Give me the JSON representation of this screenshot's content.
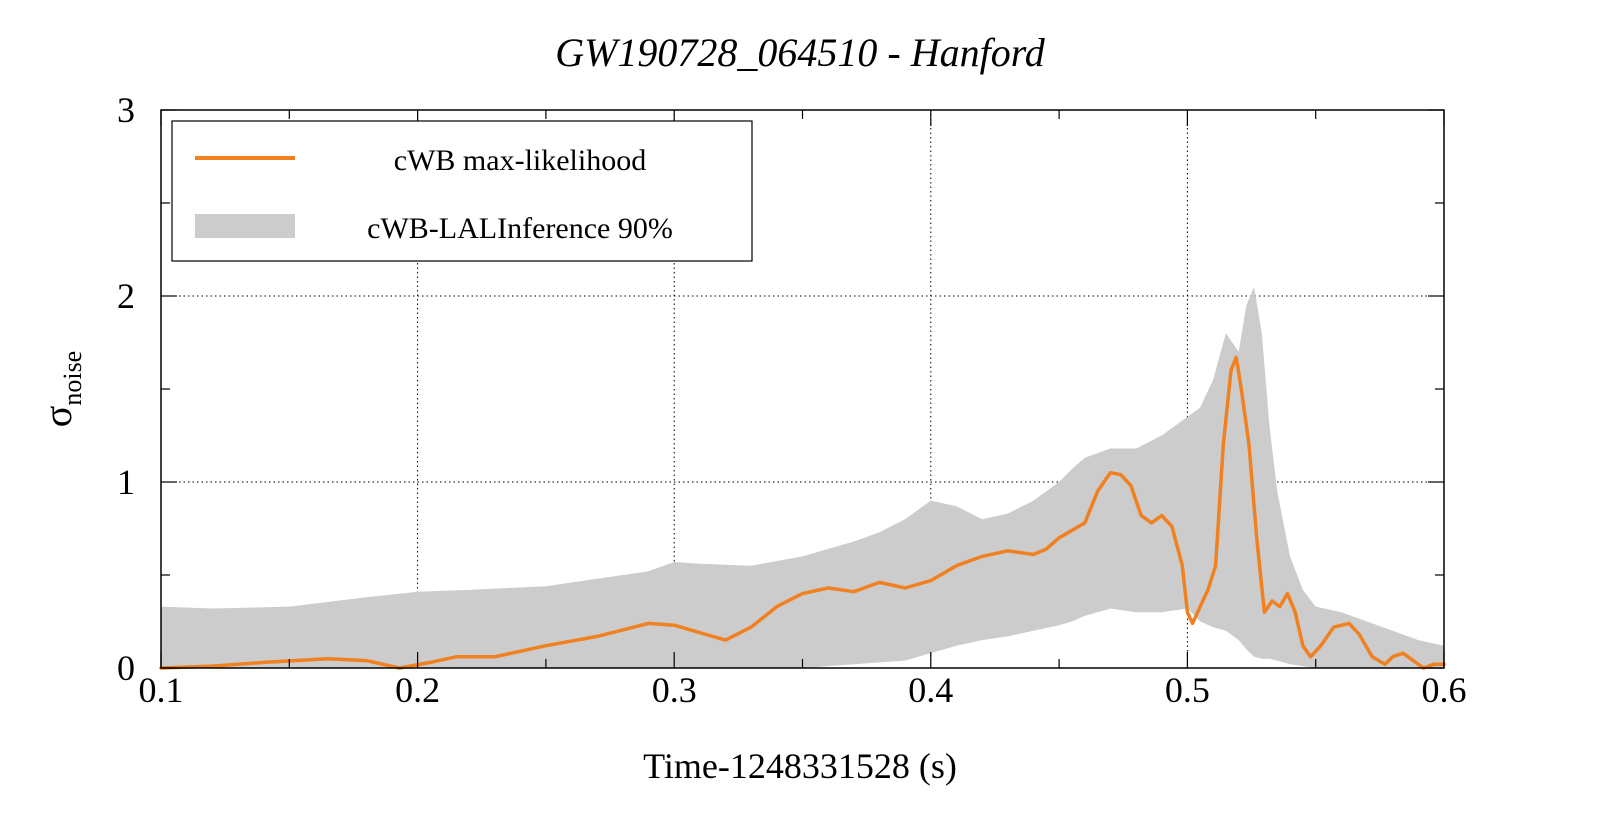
{
  "chart_data": {
    "type": "line",
    "title": "GW190728_064510 - Hanford",
    "xlabel": "Time-1248331528 (s)",
    "ylabel_main": "σ",
    "ylabel_sub": "noise",
    "xlim": [
      0.1,
      0.6
    ],
    "ylim": [
      0,
      3
    ],
    "x_ticks": [
      0.1,
      0.2,
      0.3,
      0.4,
      0.5,
      0.6
    ],
    "x_tick_labels": [
      "0.1",
      "0.2",
      "0.3",
      "0.4",
      "0.5",
      "0.6"
    ],
    "y_ticks": [
      0,
      1,
      2,
      3
    ],
    "y_tick_labels": [
      "0",
      "1",
      "2",
      "3"
    ],
    "grid": true,
    "legend_position": "top-left",
    "colors": {
      "line": "#f08020",
      "band": "#cccccc"
    },
    "series": [
      {
        "name": "cWB max-likelihood",
        "kind": "line",
        "x": [
          0.1,
          0.12,
          0.14,
          0.165,
          0.18,
          0.193,
          0.205,
          0.215,
          0.23,
          0.25,
          0.27,
          0.29,
          0.3,
          0.31,
          0.32,
          0.33,
          0.34,
          0.35,
          0.36,
          0.37,
          0.38,
          0.39,
          0.4,
          0.41,
          0.42,
          0.43,
          0.44,
          0.445,
          0.45,
          0.46,
          0.465,
          0.47,
          0.474,
          0.478,
          0.482,
          0.486,
          0.49,
          0.494,
          0.498,
          0.5,
          0.502,
          0.505,
          0.508,
          0.511,
          0.514,
          0.517,
          0.519,
          0.521,
          0.524,
          0.527,
          0.53,
          0.533,
          0.536,
          0.539,
          0.542,
          0.545,
          0.548,
          0.552,
          0.557,
          0.563,
          0.567,
          0.572,
          0.577,
          0.58,
          0.584,
          0.588,
          0.592,
          0.596,
          0.6
        ],
        "y": [
          0.0,
          0.01,
          0.03,
          0.05,
          0.04,
          0.0,
          0.03,
          0.06,
          0.06,
          0.12,
          0.17,
          0.24,
          0.23,
          0.19,
          0.15,
          0.22,
          0.33,
          0.4,
          0.43,
          0.41,
          0.46,
          0.43,
          0.47,
          0.55,
          0.6,
          0.63,
          0.61,
          0.64,
          0.7,
          0.78,
          0.95,
          1.05,
          1.04,
          0.98,
          0.82,
          0.78,
          0.82,
          0.76,
          0.55,
          0.3,
          0.24,
          0.33,
          0.42,
          0.55,
          1.2,
          1.6,
          1.67,
          1.5,
          1.2,
          0.7,
          0.3,
          0.36,
          0.33,
          0.4,
          0.3,
          0.12,
          0.06,
          0.12,
          0.22,
          0.24,
          0.18,
          0.06,
          0.02,
          0.06,
          0.08,
          0.04,
          0.0,
          0.02,
          0.02
        ]
      },
      {
        "name": "cWB-LALInference 90%",
        "kind": "band",
        "x": [
          0.1,
          0.12,
          0.15,
          0.18,
          0.2,
          0.22,
          0.25,
          0.27,
          0.29,
          0.3,
          0.31,
          0.33,
          0.35,
          0.37,
          0.38,
          0.39,
          0.4,
          0.41,
          0.42,
          0.43,
          0.44,
          0.45,
          0.455,
          0.46,
          0.47,
          0.48,
          0.49,
          0.5,
          0.505,
          0.51,
          0.515,
          0.52,
          0.523,
          0.526,
          0.529,
          0.532,
          0.535,
          0.54,
          0.545,
          0.55,
          0.56,
          0.57,
          0.58,
          0.59,
          0.6
        ],
        "low": [
          0.0,
          0.0,
          0.0,
          0.0,
          0.0,
          0.0,
          0.0,
          0.0,
          0.0,
          0.0,
          0.0,
          0.0,
          0.0,
          0.02,
          0.03,
          0.04,
          0.08,
          0.12,
          0.15,
          0.17,
          0.2,
          0.23,
          0.25,
          0.28,
          0.32,
          0.3,
          0.3,
          0.32,
          0.25,
          0.22,
          0.2,
          0.15,
          0.1,
          0.06,
          0.05,
          0.05,
          0.04,
          0.02,
          0.01,
          0.0,
          0.0,
          0.0,
          0.0,
          0.0,
          0.0
        ],
        "high": [
          0.33,
          0.32,
          0.33,
          0.38,
          0.41,
          0.42,
          0.44,
          0.48,
          0.52,
          0.57,
          0.56,
          0.55,
          0.6,
          0.68,
          0.73,
          0.8,
          0.9,
          0.87,
          0.8,
          0.83,
          0.9,
          1.0,
          1.07,
          1.13,
          1.18,
          1.18,
          1.25,
          1.35,
          1.4,
          1.55,
          1.8,
          1.7,
          1.95,
          2.05,
          1.8,
          1.3,
          0.95,
          0.6,
          0.42,
          0.33,
          0.3,
          0.25,
          0.2,
          0.15,
          0.12
        ]
      }
    ]
  }
}
